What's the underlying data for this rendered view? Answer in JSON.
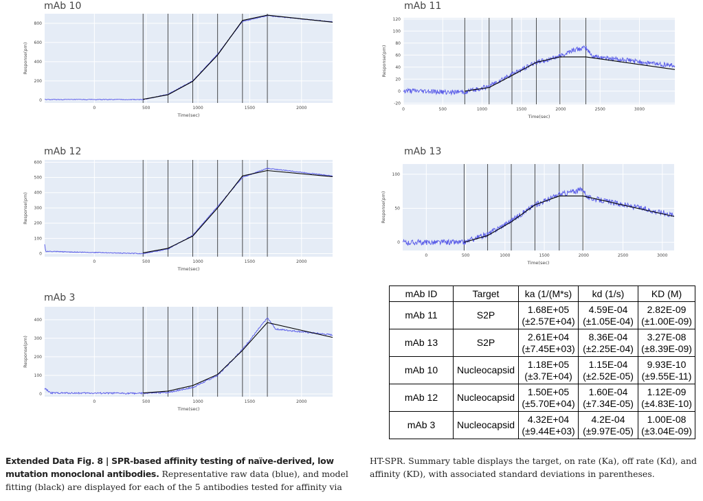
{
  "colors": {
    "plot_bg": "#e5ecf6",
    "grid": "#ffffff",
    "data": "#5b5ee8",
    "fit": "#000000",
    "vline": "#222222"
  },
  "chart_data": [
    {
      "type": "line",
      "title": "mAb 10",
      "xlabel": "Time(sec)",
      "ylabel": "Response(pm)",
      "xlim": [
        -480,
        2300
      ],
      "ylim": [
        -30,
        900
      ],
      "xticks": [
        0,
        500,
        1000,
        1500,
        2000
      ],
      "yticks": [
        0,
        200,
        400,
        600,
        800
      ],
      "injection_times": [
        470,
        710,
        950,
        1190,
        1430,
        1670
      ],
      "noise": 4,
      "series": [
        {
          "values": [
            [
              -480,
              5
            ],
            [
              470,
              5
            ],
            [
              710,
              60
            ],
            [
              950,
              200
            ],
            [
              1190,
              480
            ],
            [
              1430,
              820
            ],
            [
              1670,
              880
            ],
            [
              2300,
              815
            ]
          ]
        },
        {
          "values": [
            [
              470,
              8
            ],
            [
              710,
              55
            ],
            [
              950,
              195
            ],
            [
              1190,
              470
            ],
            [
              1430,
              830
            ],
            [
              1670,
              885
            ],
            [
              2300,
              812
            ]
          ]
        }
      ]
    },
    {
      "type": "line",
      "title": "mAb 11",
      "xlabel": "Time(sec)",
      "ylabel": "Response(pm)",
      "xlim": [
        0,
        3450
      ],
      "ylim": [
        -22,
        122
      ],
      "xticks": [
        0,
        500,
        1000,
        1500,
        2000,
        2500,
        3000
      ],
      "yticks": [
        -20,
        0,
        20,
        40,
        60,
        80,
        100,
        120
      ],
      "injection_times": [
        780,
        1090,
        1380,
        1690,
        1990,
        2320
      ],
      "noise": 4,
      "series": [
        {
          "values": [
            [
              0,
              0
            ],
            [
              780,
              -2
            ],
            [
              1090,
              8
            ],
            [
              1380,
              28
            ],
            [
              1690,
              48
            ],
            [
              1990,
              58
            ],
            [
              2150,
              68
            ],
            [
              2320,
              72
            ],
            [
              2400,
              58
            ],
            [
              3450,
              42
            ]
          ]
        },
        {
          "values": [
            [
              780,
              0
            ],
            [
              1090,
              6
            ],
            [
              1380,
              26
            ],
            [
              1690,
              48
            ],
            [
              1990,
              57
            ],
            [
              2320,
              57
            ],
            [
              3450,
              36
            ]
          ]
        }
      ]
    },
    {
      "type": "line",
      "title": "mAb 12",
      "xlabel": "Time(sec)",
      "ylabel": "Response(pm)",
      "xlim": [
        -480,
        2300
      ],
      "ylim": [
        -20,
        615
      ],
      "xticks": [
        0,
        500,
        1000,
        1500,
        2000
      ],
      "yticks": [
        0,
        100,
        200,
        300,
        400,
        500,
        600
      ],
      "injection_times": [
        470,
        710,
        950,
        1190,
        1430,
        1670
      ],
      "noise": 2.5,
      "series": [
        {
          "values": [
            [
              -480,
              60
            ],
            [
              -470,
              15
            ],
            [
              470,
              0
            ],
            [
              710,
              30
            ],
            [
              950,
              120
            ],
            [
              1190,
              310
            ],
            [
              1430,
              500
            ],
            [
              1670,
              560
            ],
            [
              2300,
              510
            ]
          ]
        },
        {
          "values": [
            [
              470,
              5
            ],
            [
              710,
              35
            ],
            [
              950,
              115
            ],
            [
              1190,
              300
            ],
            [
              1430,
              510
            ],
            [
              1670,
              545
            ],
            [
              2300,
              505
            ]
          ]
        }
      ]
    },
    {
      "type": "line",
      "title": "mAb 13",
      "xlabel": "Time(sec)",
      "ylabel": "Response(pm)",
      "xlim": [
        -300,
        3150
      ],
      "ylim": [
        -12,
        115
      ],
      "xticks": [
        0,
        500,
        1000,
        1500,
        2000,
        2500,
        3000
      ],
      "yticks": [
        0,
        50,
        100
      ],
      "injection_times": [
        480,
        780,
        1080,
        1380,
        1690,
        1990
      ],
      "noise": 4,
      "series": [
        {
          "values": [
            [
              -300,
              0
            ],
            [
              480,
              0
            ],
            [
              780,
              12
            ],
            [
              1080,
              32
            ],
            [
              1380,
              55
            ],
            [
              1690,
              70
            ],
            [
              1990,
              78
            ],
            [
              2050,
              66
            ],
            [
              3150,
              40
            ]
          ]
        },
        {
          "values": [
            [
              480,
              0
            ],
            [
              780,
              10
            ],
            [
              1080,
              30
            ],
            [
              1380,
              55
            ],
            [
              1690,
              68
            ],
            [
              1990,
              68
            ],
            [
              3150,
              38
            ]
          ]
        }
      ]
    },
    {
      "type": "line",
      "title": "mAb 3",
      "xlabel": "Time(sec)",
      "ylabel": "Response(pm)",
      "xlim": [
        -480,
        2300
      ],
      "ylim": [
        -15,
        470
      ],
      "xticks": [
        0,
        500,
        1000,
        1500,
        2000
      ],
      "yticks": [
        0,
        100,
        200,
        300,
        400
      ],
      "injection_times": [
        470,
        710,
        950,
        1190,
        1430,
        1670
      ],
      "noise": 4,
      "series": [
        {
          "values": [
            [
              -480,
              30
            ],
            [
              -420,
              5
            ],
            [
              470,
              3
            ],
            [
              710,
              8
            ],
            [
              950,
              35
            ],
            [
              1190,
              100
            ],
            [
              1430,
              240
            ],
            [
              1670,
              410
            ],
            [
              1750,
              350
            ],
            [
              2300,
              318
            ]
          ]
        },
        {
          "values": [
            [
              470,
              5
            ],
            [
              710,
              15
            ],
            [
              950,
              45
            ],
            [
              1190,
              105
            ],
            [
              1430,
              235
            ],
            [
              1670,
              385
            ],
            [
              2300,
              305
            ]
          ]
        }
      ]
    }
  ],
  "table": {
    "headers": [
      "mAb ID",
      "Target",
      "ka (1/(M*s)",
      "kd (1/s)",
      "KD (M)"
    ],
    "rows": [
      {
        "id": "mAb 11",
        "target": "S2P",
        "ka": "1.68E+05",
        "ka_sd": "(±2.57E+04)",
        "kd": "4.59E-04",
        "kd_sd": "(±1.05E-04)",
        "KD": "2.82E-09",
        "KD_sd": "(±1.00E-09)"
      },
      {
        "id": "mAb 13",
        "target": "S2P",
        "ka": "2.61E+04",
        "ka_sd": "(±7.45E+03)",
        "kd": "8.36E-04",
        "kd_sd": "(±2.25E-04)",
        "KD": "3.27E-08",
        "KD_sd": "(±8.39E-09)"
      },
      {
        "id": "mAb 10",
        "target": "Nucleocapsid",
        "ka": "1.18E+05",
        "ka_sd": "(±3.7E+04)",
        "kd": "1.15E-04",
        "kd_sd": "(±2.52E-05)",
        "KD": "9.93E-10",
        "KD_sd": "(±9.55E-11)"
      },
      {
        "id": "mAb 12",
        "target": "Nucleocapsid",
        "ka": "1.50E+05",
        "ka_sd": "(±5.70E+04)",
        "kd": "1.60E-04",
        "kd_sd": "(±7.34E-05)",
        "KD": "1.12E-09",
        "KD_sd": "(±4.83E-10)"
      },
      {
        "id": "mAb 3",
        "target": "Nucleocapsid",
        "ka": "4.32E+04",
        "ka_sd": "(±9.44E+03)",
        "kd": "4.2E-04",
        "kd_sd": "(±9.97E-05)",
        "KD": "1.00E-08",
        "KD_sd": "(±3.04E-09)"
      }
    ]
  },
  "caption": {
    "label": "Extended Data Fig. 8 |",
    "bold": "SPR-based affinity testing of naïve-derived, low mutation monoclonal antibodies.",
    "text_left": "Representative raw data (blue), and model fitting (black) are displayed for each of the 5 antibodies tested for affinity via",
    "text_right": "HT-SPR. Summary table displays the target, on rate (Ka), off rate (Kd), and affinity (KD), with associated standard deviations in parentheses."
  }
}
